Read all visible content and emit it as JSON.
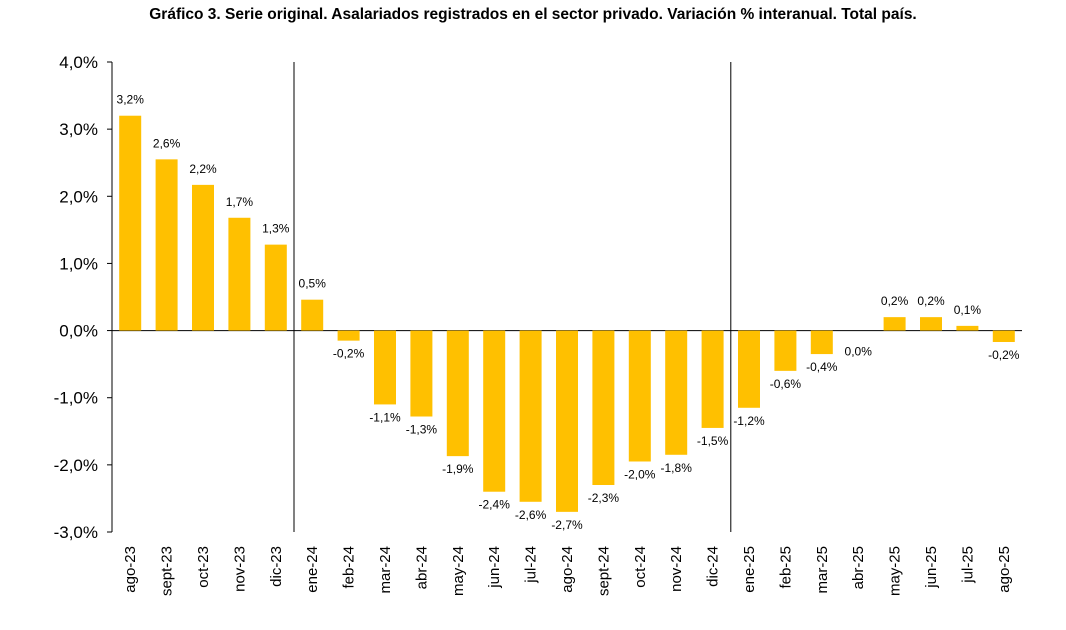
{
  "chart_data": {
    "type": "bar",
    "title": "Gráfico 3. Serie original. Asalariados registrados en el sector privado. Variación % interanual. Total país.",
    "xlabel": "",
    "ylabel": "",
    "ylim": [
      -3.0,
      4.0
    ],
    "yticks": [
      4.0,
      3.0,
      2.0,
      1.0,
      0.0,
      -1.0,
      -2.0,
      -3.0
    ],
    "ytick_labels": [
      "4,0%",
      "3,0%",
      "2,0%",
      "1,0%",
      "0,0%",
      "-1,0%",
      "-2,0%",
      "-3,0%"
    ],
    "categories": [
      "ago-23",
      "sept-23",
      "oct-23",
      "nov-23",
      "dic-23",
      "ene-24",
      "feb-24",
      "mar-24",
      "abr-24",
      "may-24",
      "jun-24",
      "jul-24",
      "ago-24",
      "sept-24",
      "oct-24",
      "nov-24",
      "dic-24",
      "ene-25",
      "feb-25",
      "mar-25",
      "abr-25",
      "may-25",
      "jun-25",
      "jul-25",
      "ago-25"
    ],
    "values": [
      3.2,
      2.55,
      2.17,
      1.68,
      1.28,
      0.46,
      -0.15,
      -1.1,
      -1.28,
      -1.87,
      -2.4,
      -2.55,
      -2.7,
      -2.3,
      -1.95,
      -1.85,
      -1.45,
      -1.15,
      -0.6,
      -0.35,
      0.0,
      0.2,
      0.2,
      0.07,
      -0.17
    ],
    "labels": [
      "3,2%",
      "2,6%",
      "2,2%",
      "1,7%",
      "1,3%",
      "0,5%",
      "-0,2%",
      "-1,1%",
      "-1,3%",
      "-1,9%",
      "-2,4%",
      "-2,6%",
      "-2,7%",
      "-2,3%",
      "-2,0%",
      "-1,8%",
      "-1,5%",
      "-1,2%",
      "-0,6%",
      "-0,4%",
      "0,0%",
      "0,2%",
      "0,2%",
      "0,1%",
      "-0,2%"
    ],
    "separators_after": [
      "dic-23",
      "dic-24"
    ],
    "grid": false,
    "legend": "none",
    "bar_color": "#FFC000"
  }
}
